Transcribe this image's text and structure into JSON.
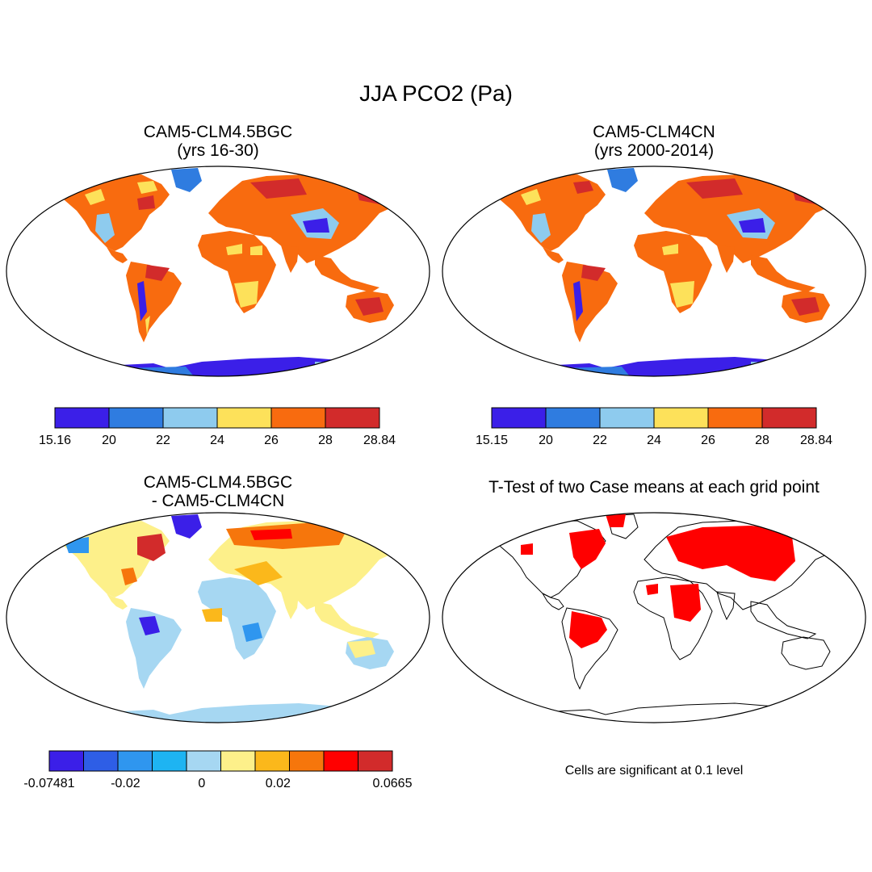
{
  "figure": {
    "title": "JJA PCO2 (Pa)",
    "significance_note": "Cells are significant at 0.1 level"
  },
  "panels": [
    {
      "title_line1": "CAM5-CLM4.5BGC",
      "title_line2": "(yrs 16-30)"
    },
    {
      "title_line1": "CAM5-CLM4CN",
      "title_line2": "(yrs 2000-2014)"
    },
    {
      "title_line1": "CAM5-CLM4.5BGC",
      "title_line2": "- CAM5-CLM4CN"
    },
    {
      "title_line1": "T-Test of two Case means at each grid point",
      "title_line2": ""
    }
  ],
  "colorbars": [
    {
      "name": "colorbar-panel-1",
      "colors": [
        "#3b1fe8",
        "#2f7ce0",
        "#8ecbee",
        "#fde15a",
        "#f86b0f",
        "#d22b2b"
      ],
      "labels": [
        "15.16",
        "20",
        "22",
        "24",
        "26",
        "28",
        "28.84"
      ]
    },
    {
      "name": "colorbar-panel-2",
      "colors": [
        "#3b1fe8",
        "#2f7ce0",
        "#8ecbee",
        "#fde15a",
        "#f86b0f",
        "#d22b2b"
      ],
      "labels": [
        "15.15",
        "20",
        "22",
        "24",
        "26",
        "28",
        "28.84"
      ]
    },
    {
      "name": "colorbar-panel-3",
      "colors": [
        "#3b1fe8",
        "#2e5ee6",
        "#2f96ef",
        "#1eb4f2",
        "#a6d7f2",
        "#fdf08a",
        "#fbb81b",
        "#f6760c",
        "#ff0000",
        "#d22b2b"
      ],
      "labels": [
        "-0.07481",
        "",
        "-0.02",
        "",
        "0",
        "",
        "0.02",
        "",
        "",
        "0.0665"
      ]
    }
  ],
  "legend_colors": {
    "significant": "#ff0000",
    "ocean": "#ffffff",
    "coast": "#000000"
  }
}
